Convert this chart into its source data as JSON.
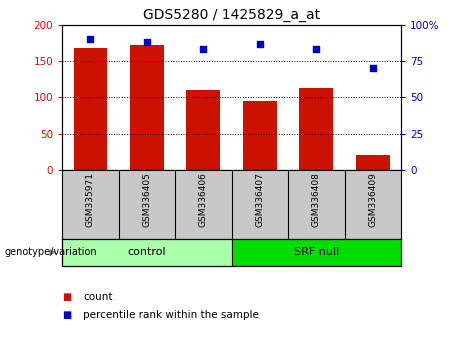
{
  "title": "GDS5280 / 1425829_a_at",
  "samples": [
    "GSM335971",
    "GSM336405",
    "GSM336406",
    "GSM336407",
    "GSM336408",
    "GSM336409"
  ],
  "bar_values": [
    168,
    172,
    110,
    95,
    113,
    20
  ],
  "dot_values": [
    90,
    88,
    83,
    87,
    83,
    70
  ],
  "bar_color": "#cc1100",
  "dot_color": "#0000cc",
  "left_ylim": [
    0,
    200
  ],
  "right_ylim": [
    0,
    100
  ],
  "left_yticks": [
    0,
    50,
    100,
    150,
    200
  ],
  "right_yticks": [
    0,
    25,
    50,
    75,
    100
  ],
  "right_yticklabels": [
    "0",
    "25",
    "50",
    "75",
    "100%"
  ],
  "groups": [
    {
      "label": "control",
      "indices": [
        0,
        1,
        2
      ],
      "color": "#aaffaa"
    },
    {
      "label": "SRF null",
      "indices": [
        3,
        4,
        5
      ],
      "color": "#00dd00"
    }
  ],
  "group_label": "genotype/variation",
  "legend_count": "count",
  "legend_pct": "percentile rank within the sample",
  "background_color": "#ffffff",
  "plot_bg": "#ffffff",
  "tick_label_area_color": "#c8c8c8",
  "title_fontsize": 10,
  "tick_fontsize": 7.5,
  "sample_fontsize": 6.5,
  "group_fontsize": 8,
  "legend_fontsize": 7.5
}
